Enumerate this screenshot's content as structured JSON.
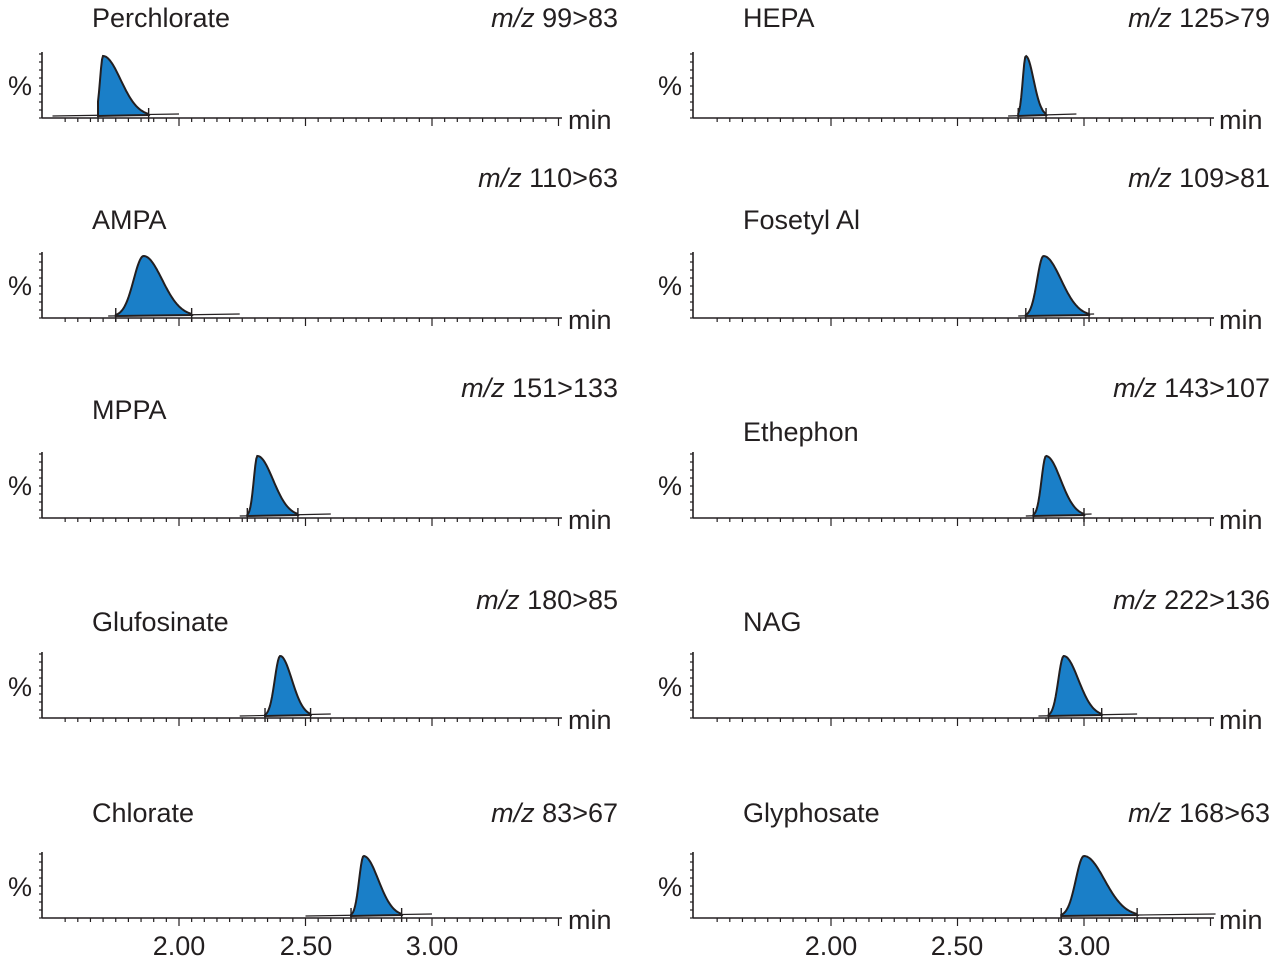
{
  "chart_data": [
    {
      "type": "line",
      "title": "Perchlorate",
      "transition_prefix": "m/z",
      "transition": "99>83",
      "ylabel": "%",
      "xlabel": "min",
      "peak_rt": 1.7,
      "integration": [
        1.68,
        1.88
      ],
      "trace_range": [
        1.5,
        2.0
      ]
    },
    {
      "type": "line",
      "title": "AMPA",
      "transition_prefix": "m/z",
      "transition": "110>63",
      "ylabel": "%",
      "xlabel": "min",
      "peak_rt": 1.86,
      "integration": [
        1.75,
        2.05
      ],
      "trace_range": [
        1.72,
        2.24
      ]
    },
    {
      "type": "line",
      "title": "MPPA",
      "transition_prefix": "m/z",
      "transition": "151>133",
      "ylabel": "%",
      "xlabel": "min",
      "peak_rt": 2.31,
      "integration": [
        2.27,
        2.47
      ],
      "trace_range": [
        2.24,
        2.6
      ]
    },
    {
      "type": "line",
      "title": "Glufosinate",
      "transition_prefix": "m/z",
      "transition": "180>85",
      "ylabel": "%",
      "xlabel": "min",
      "peak_rt": 2.4,
      "integration": [
        2.34,
        2.52
      ],
      "trace_range": [
        2.24,
        2.6
      ]
    },
    {
      "type": "line",
      "title": "Chlorate",
      "transition_prefix": "m/z",
      "transition": "83>67",
      "ylabel": "%",
      "xlabel": "min",
      "peak_rt": 2.73,
      "integration": [
        2.68,
        2.88
      ],
      "trace_range": [
        2.5,
        3.0
      ]
    },
    {
      "type": "line",
      "title": "HEPA",
      "transition_prefix": "m/z",
      "transition": "125>79",
      "ylabel": "%",
      "xlabel": "min",
      "peak_rt": 2.77,
      "integration": [
        2.74,
        2.85
      ],
      "trace_range": [
        2.7,
        2.97
      ]
    },
    {
      "type": "line",
      "title": "Fosetyl Al",
      "transition_prefix": "m/z",
      "transition": "109>81",
      "ylabel": "%",
      "xlabel": "min",
      "peak_rt": 2.84,
      "integration": [
        2.77,
        3.02
      ],
      "trace_range": [
        2.74,
        3.04
      ]
    },
    {
      "type": "line",
      "title": "Ethephon",
      "transition_prefix": "m/z",
      "transition": "143>107",
      "ylabel": "%",
      "xlabel": "min",
      "peak_rt": 2.85,
      "integration": [
        2.8,
        3.0
      ],
      "trace_range": [
        2.77,
        3.03
      ]
    },
    {
      "type": "line",
      "title": "NAG",
      "transition_prefix": "m/z",
      "transition": "222>136",
      "ylabel": "%",
      "xlabel": "min",
      "peak_rt": 2.92,
      "integration": [
        2.86,
        3.07
      ],
      "trace_range": [
        2.82,
        3.21
      ]
    },
    {
      "type": "line",
      "title": "Glyphosate",
      "transition_prefix": "m/z",
      "transition": "168>63",
      "ylabel": "%",
      "xlabel": "min",
      "peak_rt": 3.0,
      "integration": [
        2.91,
        3.21
      ],
      "trace_range": [
        2.91,
        3.52
      ]
    }
  ],
  "x_axis": {
    "ticks": [
      "2.00",
      "2.50",
      "3.00"
    ],
    "range": [
      1.5,
      3.52
    ]
  },
  "colors": {
    "peak_fill": "#1a7fc8",
    "line": "#231f20"
  }
}
